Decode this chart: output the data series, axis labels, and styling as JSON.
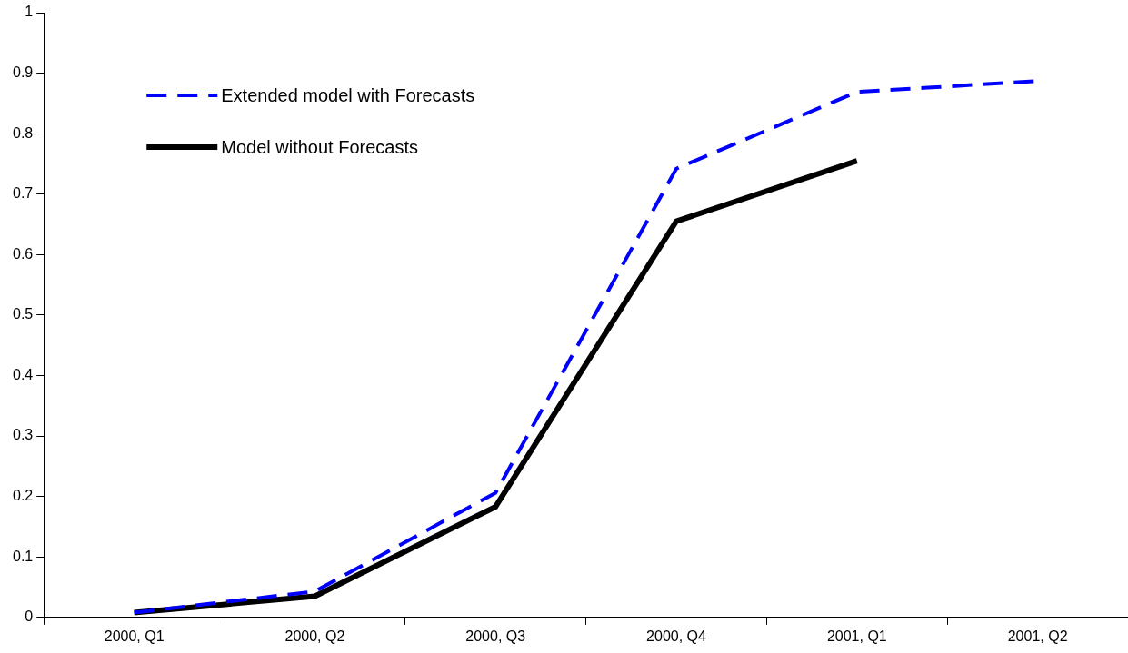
{
  "chart_data": {
    "type": "line",
    "categories": [
      "2000, Q1",
      "2000, Q2",
      "2000, Q3",
      "2000, Q4",
      "2001, Q1",
      "2001, Q2"
    ],
    "series": [
      {
        "name": "Extended model with Forecasts",
        "color": "#0000ff",
        "line_style": "dashed",
        "values": [
          0.008,
          0.043,
          0.206,
          0.742,
          0.869,
          0.887
        ]
      },
      {
        "name": "Model without Forecasts",
        "color": "#000000",
        "line_style": "solid",
        "values": [
          0.008,
          0.035,
          0.183,
          0.655,
          0.755,
          null
        ]
      }
    ],
    "ylim": [
      0,
      1
    ],
    "yticks": [
      0,
      0.1,
      0.2,
      0.3,
      0.4,
      0.5,
      0.6,
      0.7,
      0.8,
      0.9,
      1
    ],
    "grid": false,
    "legend": "top left",
    "marker": "none"
  }
}
